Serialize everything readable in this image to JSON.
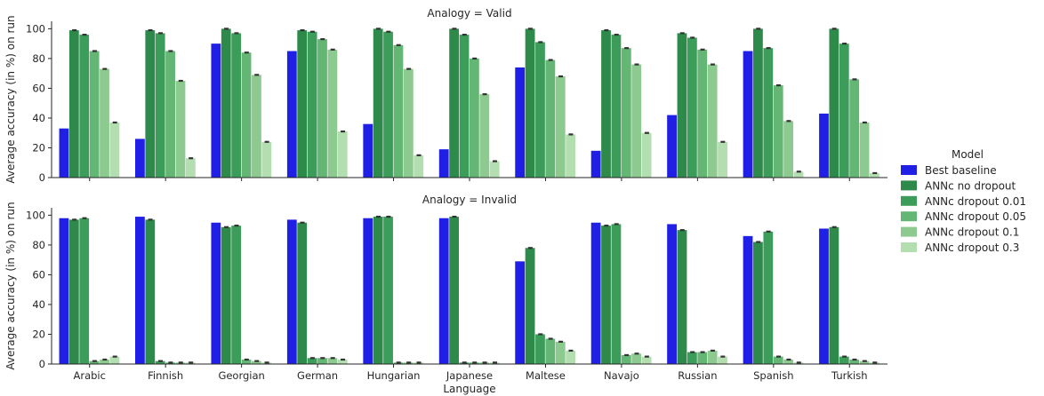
{
  "chart_data": {
    "type": "bar",
    "xlabel": "Language",
    "ylabel": "Average accuracy (in %) on run",
    "ylim": [
      0,
      105
    ],
    "yticks": [
      0,
      20,
      40,
      60,
      80,
      100
    ],
    "categories": [
      "Arabic",
      "Finnish",
      "Georgian",
      "German",
      "Hungarian",
      "Japanese",
      "Maltese",
      "Navajo",
      "Russian",
      "Spanish",
      "Turkish"
    ],
    "legend": {
      "title": "Model",
      "placement": "right",
      "entries": [
        "Best baseline",
        "ANNc no dropout",
        "ANNc dropout 0.01",
        "ANNc dropout 0.05",
        "ANNc dropout 0.1",
        "ANNc dropout 0.3"
      ]
    },
    "colors": [
      "#1f1fe6",
      "#2e8a4b",
      "#3c9c5a",
      "#63b673",
      "#8dca8f",
      "#b2deb0"
    ],
    "panels": [
      {
        "title": "Analogy = Valid",
        "series": [
          {
            "name": "Best baseline",
            "values": [
              33,
              26,
              90,
              85,
              36,
              19,
              74,
              18,
              42,
              85,
              43
            ]
          },
          {
            "name": "ANNc no dropout",
            "values": [
              99,
              99,
              100,
              99,
              100,
              100,
              100,
              99,
              97,
              100,
              100
            ]
          },
          {
            "name": "ANNc dropout 0.01",
            "values": [
              96,
              97,
              97,
              98,
              98,
              96,
              91,
              96,
              94,
              87,
              90
            ]
          },
          {
            "name": "ANNc dropout 0.05",
            "values": [
              85,
              85,
              84,
              93,
              89,
              80,
              79,
              87,
              86,
              62,
              66
            ]
          },
          {
            "name": "ANNc dropout 0.1",
            "values": [
              73,
              65,
              69,
              86,
              73,
              56,
              68,
              76,
              76,
              38,
              37
            ]
          },
          {
            "name": "ANNc dropout 0.3",
            "values": [
              37,
              13,
              24,
              31,
              15,
              11,
              29,
              30,
              24,
              4,
              3
            ]
          }
        ]
      },
      {
        "title": "Analogy = Invalid",
        "series": [
          {
            "name": "Best baseline",
            "values": [
              98,
              99,
              95,
              97,
              98,
              98,
              69,
              95,
              94,
              86,
              91
            ]
          },
          {
            "name": "ANNc no dropout",
            "values": [
              97,
              97,
              92,
              95,
              99,
              99,
              78,
              93,
              90,
              82,
              92
            ]
          },
          {
            "name": "ANNc dropout 0.01",
            "values": [
              98,
              2,
              93,
              4,
              99,
              1,
              20,
              94,
              8,
              89,
              5
            ]
          },
          {
            "name": "ANNc dropout 0.05",
            "values": [
              2,
              1,
              3,
              4,
              1,
              1,
              17,
              6,
              8,
              5,
              3
            ]
          },
          {
            "name": "ANNc dropout 0.1",
            "values": [
              3,
              1,
              2,
              4,
              1,
              1,
              15,
              7,
              9,
              3,
              2
            ]
          },
          {
            "name": "ANNc dropout 0.3",
            "values": [
              5,
              1,
              1,
              3,
              1,
              1,
              9,
              5,
              5,
              1,
              1
            ]
          }
        ]
      }
    ]
  }
}
